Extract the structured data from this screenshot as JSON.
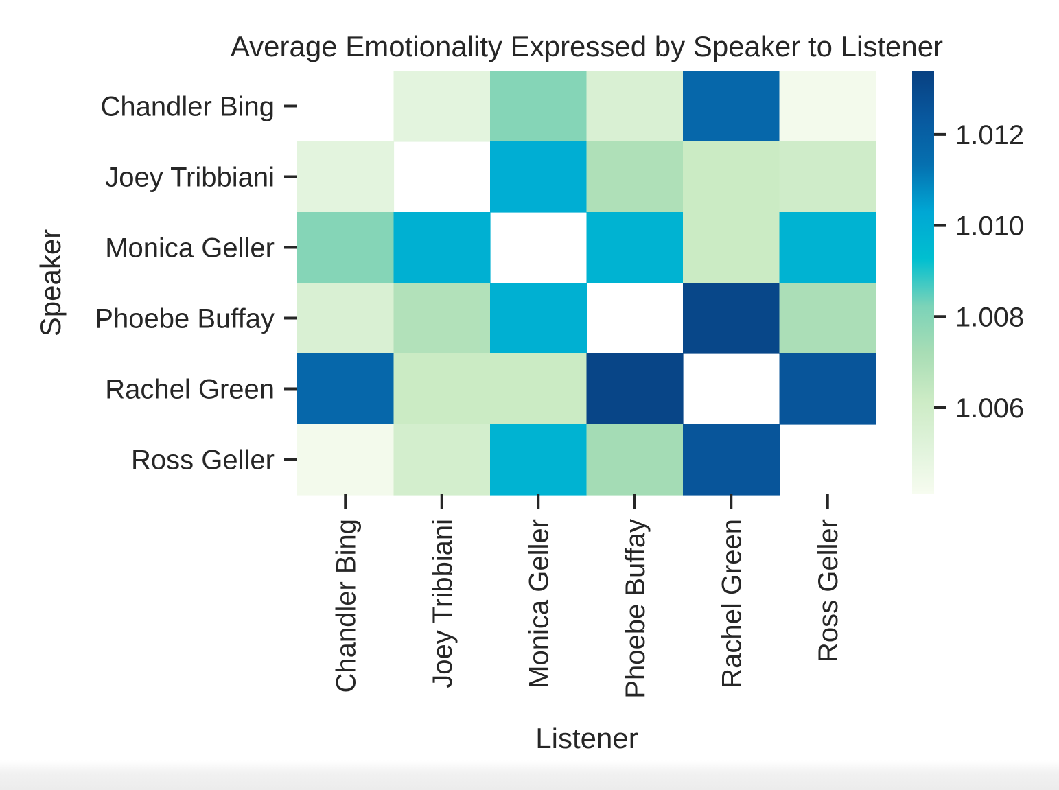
{
  "chart_data": {
    "type": "heatmap",
    "title": "Average Emotionality Expressed by Speaker to Listener",
    "xlabel": "Listener",
    "ylabel": "Speaker",
    "x_categories": [
      "Chandler Bing",
      "Joey Tribbiani",
      "Monica Geller",
      "Phoebe Buffay",
      "Rachel Green",
      "Ross Geller"
    ],
    "y_categories": [
      "Chandler Bing",
      "Joey Tribbiani",
      "Monica Geller",
      "Phoebe Buffay",
      "Rachel Green",
      "Ross Geller"
    ],
    "values": [
      [
        null,
        1.005,
        1.008,
        1.0055,
        1.0117,
        1.0043
      ],
      [
        1.005,
        null,
        1.01,
        1.007,
        1.0062,
        1.006
      ],
      [
        1.008,
        1.0099,
        null,
        1.0098,
        1.0062,
        1.0098
      ],
      [
        1.0055,
        1.0069,
        1.0099,
        null,
        1.0131,
        1.0071
      ],
      [
        1.0117,
        1.0062,
        1.0062,
        1.0132,
        null,
        1.0125
      ],
      [
        1.0043,
        1.0058,
        1.0098,
        1.0073,
        1.0125,
        null
      ]
    ],
    "colorbar": {
      "vmin": 1.0041,
      "vmax": 1.0134,
      "ticks": [
        1.006,
        1.008,
        1.01,
        1.012
      ],
      "tick_labels": [
        "1.006",
        "1.008",
        "1.010",
        "1.012"
      ],
      "colormap": "GnBu",
      "colormap_stops": [
        "#f7fcf0",
        "#e0f3db",
        "#ccebc5",
        "#a8ddb5",
        "#7bd3b8",
        "#00bfd0",
        "#00a7d4",
        "#0570b0",
        "#08589e",
        "#084081"
      ]
    },
    "grid": false,
    "legend": "colorbar-right"
  }
}
